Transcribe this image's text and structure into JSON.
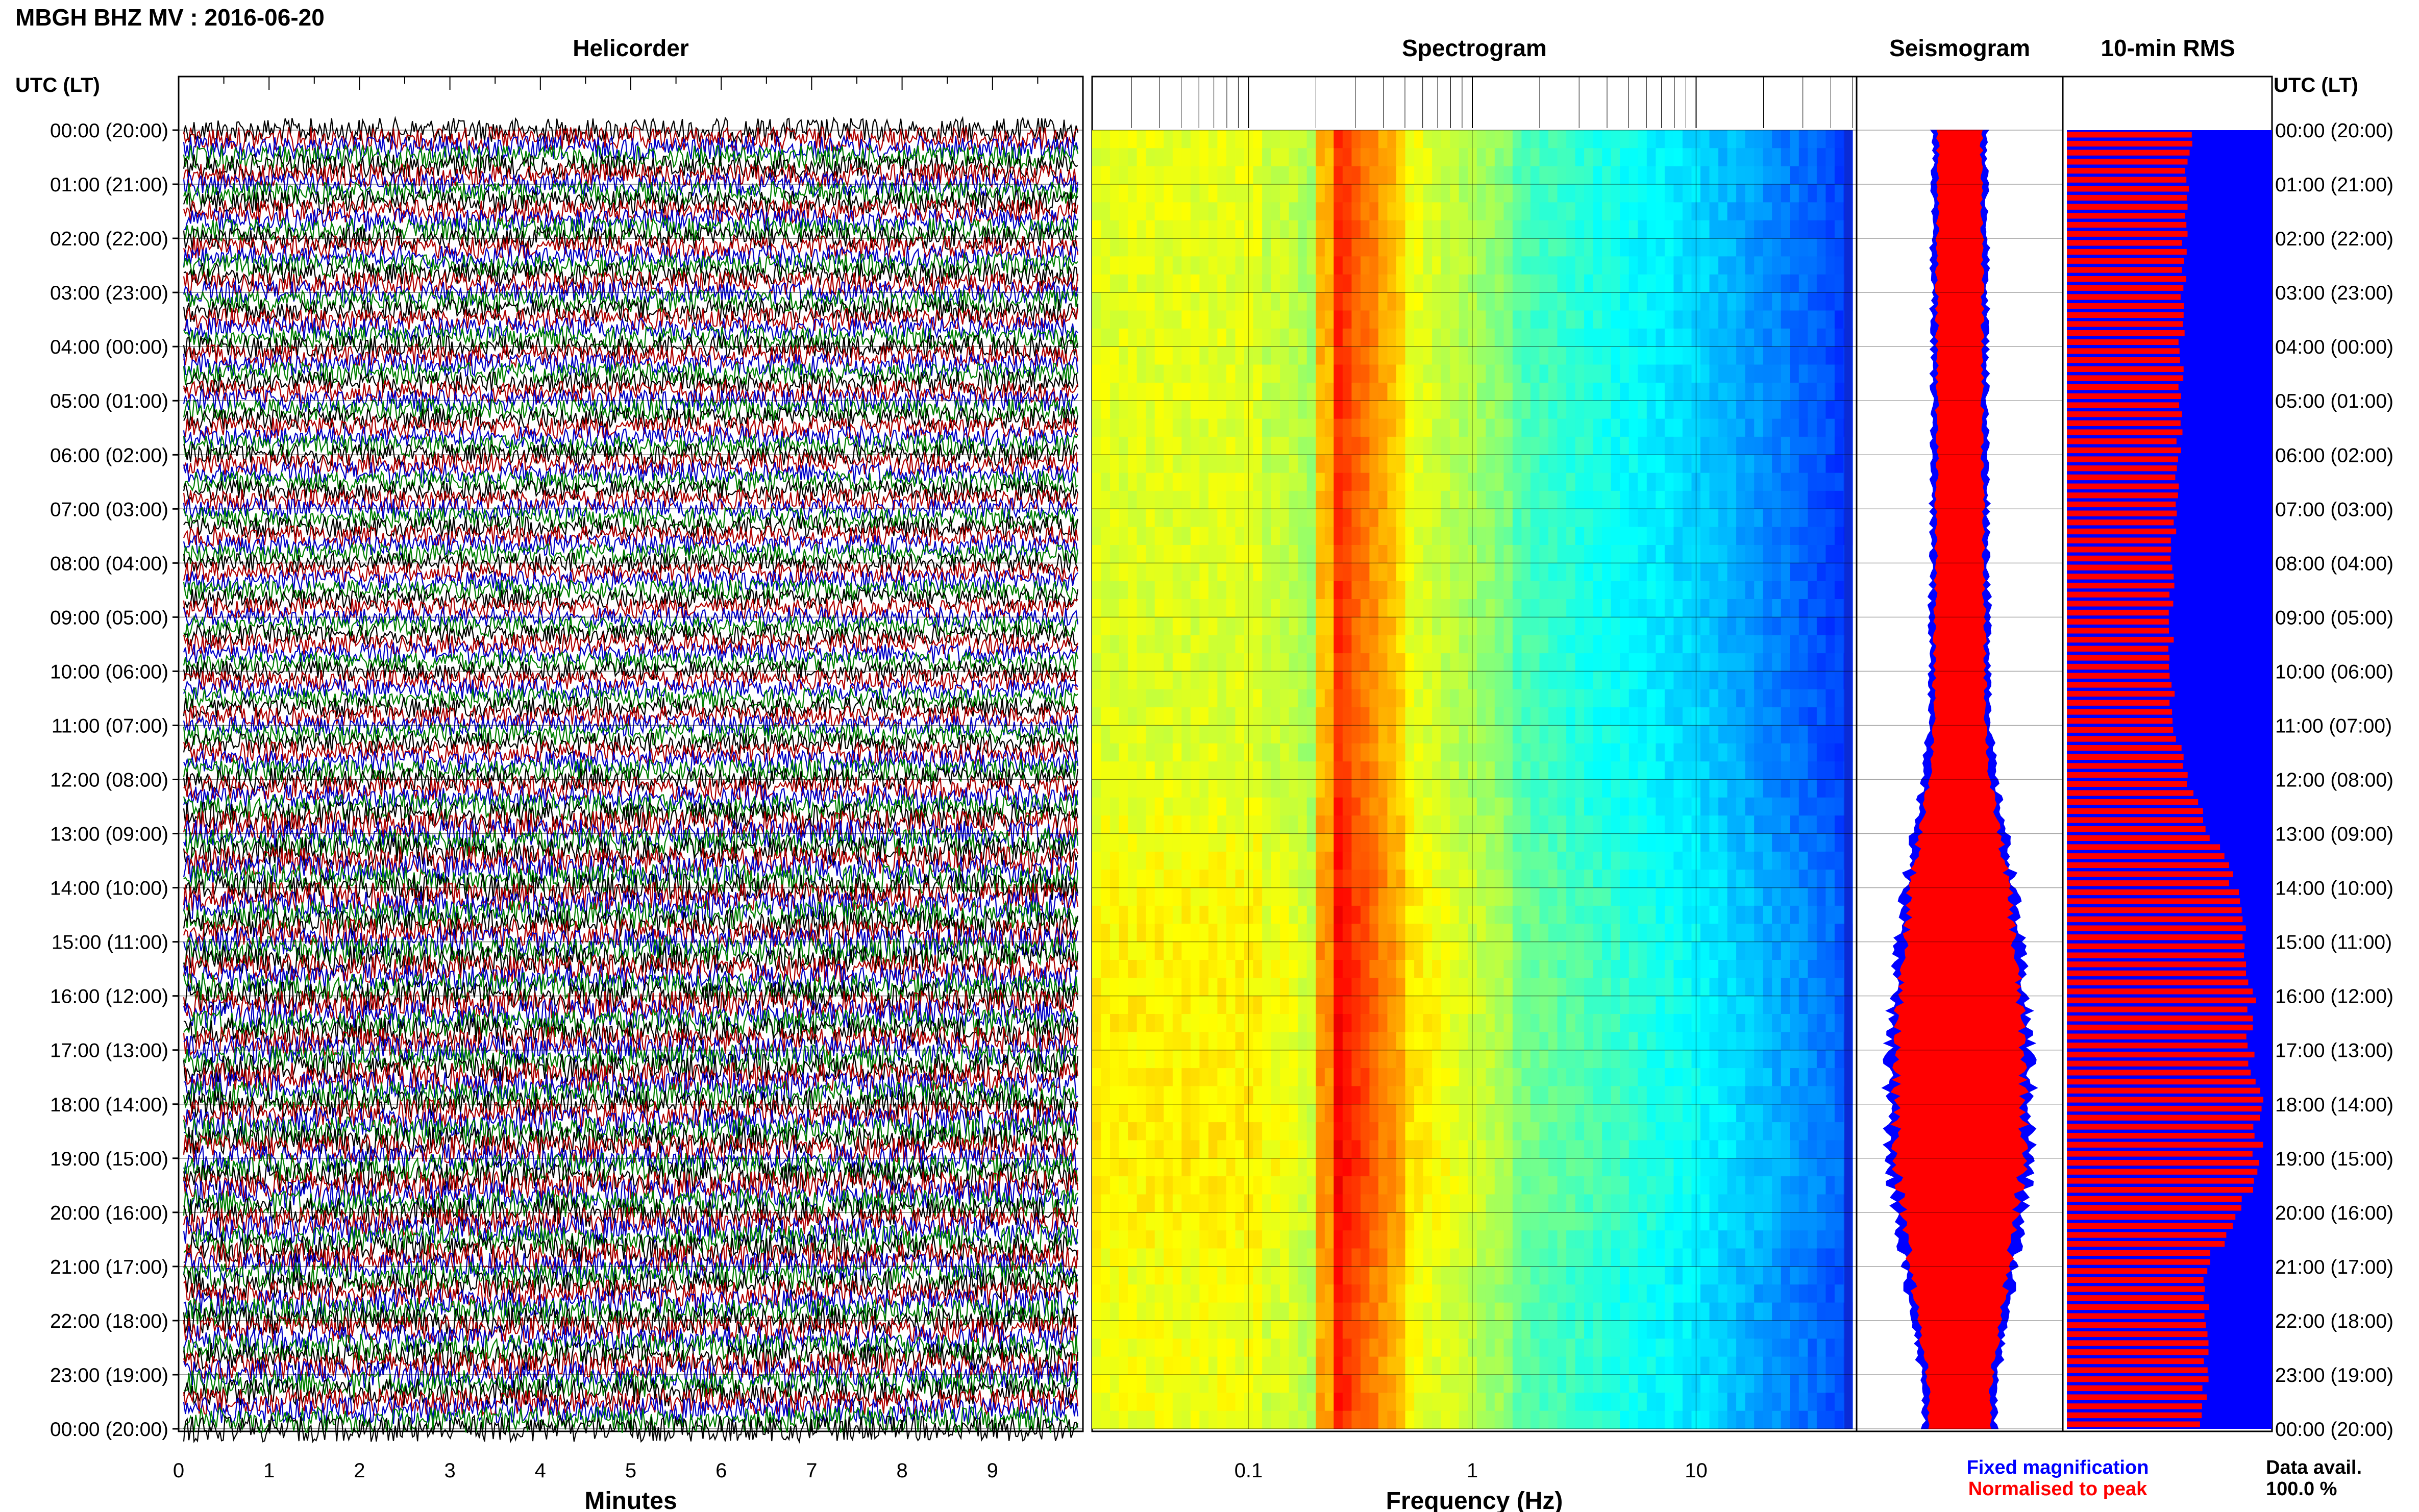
{
  "header": {
    "station": "MBGH BHZ MV : 2016-06-20",
    "utc_lt_left": "UTC (LT)",
    "utc_lt_right": "UTC (LT)"
  },
  "panels": {
    "helicorder": "Helicorder",
    "spectrogram": "Spectrogram",
    "seismogram": "Seismogram",
    "rms": "10-min RMS"
  },
  "time_labels": [
    "00:00 (20:00)",
    "01:00 (21:00)",
    "02:00 (22:00)",
    "03:00 (23:00)",
    "04:00 (00:00)",
    "05:00 (01:00)",
    "06:00 (02:00)",
    "07:00 (03:00)",
    "08:00 (04:00)",
    "09:00 (05:00)",
    "10:00 (06:00)",
    "11:00 (07:00)",
    "12:00 (08:00)",
    "13:00 (09:00)",
    "14:00 (10:00)",
    "15:00 (11:00)",
    "16:00 (12:00)",
    "17:00 (13:00)",
    "18:00 (14:00)",
    "19:00 (15:00)",
    "20:00 (16:00)",
    "21:00 (17:00)",
    "22:00 (18:00)",
    "23:00 (19:00)",
    "00:00 (20:00)"
  ],
  "footer": {
    "minutes_label": "Minutes",
    "frequency_label": "Frequency (Hz)",
    "legend_fixed": "Fixed magnification",
    "legend_normalised": "Normalised to peak",
    "data_avail_label": "Data avail.",
    "data_avail_value": "100.0 %"
  },
  "colors": {
    "helicorder_traces": [
      "#000000",
      "#b00000",
      "#0000c8",
      "#008000"
    ],
    "fixed": "#0000ff",
    "normalised": "#ff0000",
    "spectrogram_low": "#0a2bd6",
    "spectrogram_high": "#e01010"
  },
  "chart_data": [
    {
      "type": "line",
      "name": "helicorder",
      "title": "Helicorder",
      "xlabel": "Minutes",
      "xlim": [
        0,
        10
      ],
      "x_ticks": [
        "0",
        "1",
        "2",
        "3",
        "4",
        "5",
        "6",
        "7",
        "8",
        "9"
      ],
      "traces_per_hour": 6,
      "hours": 24,
      "grid": true
    },
    {
      "type": "heatmap",
      "name": "spectrogram",
      "title": "Spectrogram",
      "xlabel": "Frequency (Hz)",
      "x_scale": "log",
      "xlim": [
        0.02,
        50
      ],
      "x_ticks": [
        "0.1",
        "1",
        "10"
      ],
      "peak_band_hz": [
        0.2,
        0.5
      ],
      "grid": true
    },
    {
      "type": "area",
      "name": "seismogram",
      "title": "Seismogram",
      "series": [
        {
          "name": "Fixed magnification",
          "halfwidth": [
            0.3,
            0.3,
            0.31,
            0.31,
            0.31,
            0.31,
            0.31,
            0.32,
            0.32,
            0.33,
            0.34,
            0.35,
            0.4,
            0.52,
            0.62,
            0.68,
            0.74,
            0.8,
            0.8,
            0.8,
            0.72,
            0.62,
            0.55,
            0.42,
            0.4
          ]
        },
        {
          "name": "Normalised to peak",
          "halfwidth": [
            0.24,
            0.24,
            0.25,
            0.25,
            0.25,
            0.25,
            0.25,
            0.26,
            0.26,
            0.27,
            0.28,
            0.29,
            0.33,
            0.44,
            0.54,
            0.6,
            0.66,
            0.71,
            0.71,
            0.71,
            0.63,
            0.54,
            0.47,
            0.35,
            0.33
          ]
        }
      ]
    },
    {
      "type": "bar",
      "name": "rms",
      "title": "10-min RMS",
      "orientation": "horizontal",
      "hourly_rms": [
        0.62,
        0.59,
        0.59,
        0.58,
        0.57,
        0.57,
        0.55,
        0.54,
        0.52,
        0.52,
        0.52,
        0.53,
        0.6,
        0.72,
        0.84,
        0.88,
        0.92,
        0.92,
        0.95,
        0.95,
        0.88,
        0.7,
        0.7,
        0.7,
        0.66
      ],
      "series": [
        {
          "name": "Fixed magnification"
        },
        {
          "name": "Normalised to peak"
        }
      ]
    }
  ]
}
